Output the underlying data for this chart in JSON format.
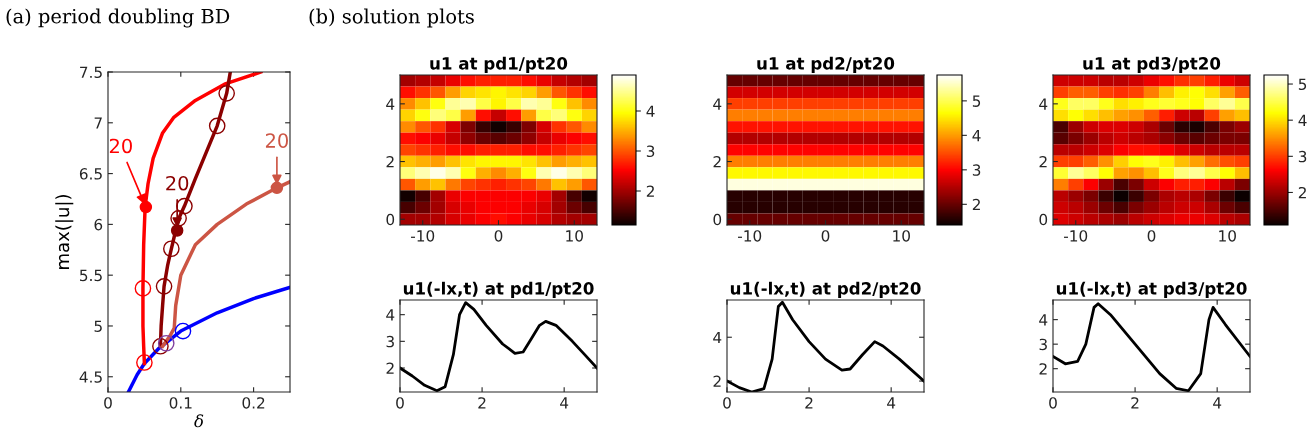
{
  "chart_data": [
    {
      "type": "line",
      "title": "(a) period doubling BD",
      "xlabel": "δ",
      "ylabel": "max(|u|)",
      "xlim": [
        0,
        0.25
      ],
      "xticks": [
        0,
        0.1,
        0.2
      ],
      "ylim": [
        4.35,
        7.5
      ],
      "yticks": [
        4.5,
        5,
        5.5,
        6,
        6.5,
        7,
        7.5
      ],
      "series": [
        {
          "color": "#0000ff",
          "x": [
            0.028,
            0.04,
            0.05,
            0.07,
            0.1,
            0.15,
            0.2,
            0.25
          ],
          "values": [
            4.35,
            4.52,
            4.63,
            4.78,
            4.95,
            5.13,
            5.27,
            5.38
          ]
        },
        {
          "color": "#ff0000",
          "x": [
            0.05,
            0.049,
            0.048,
            0.048,
            0.049,
            0.051,
            0.055,
            0.062,
            0.075,
            0.09,
            0.12,
            0.16,
            0.21
          ],
          "values": [
            4.63,
            4.8,
            5.0,
            5.37,
            5.8,
            6.17,
            6.4,
            6.65,
            6.9,
            7.05,
            7.22,
            7.38,
            7.5
          ]
        },
        {
          "color": "#8b0000",
          "x": [
            0.072,
            0.073,
            0.075,
            0.077,
            0.082,
            0.087,
            0.093,
            0.098,
            0.105,
            0.12,
            0.15,
            0.163,
            0.168
          ],
          "values": [
            4.8,
            5.0,
            5.2,
            5.39,
            5.6,
            5.76,
            5.94,
            6.07,
            6.18,
            6.45,
            6.97,
            7.29,
            7.5
          ]
        },
        {
          "color": "#cc5544",
          "x": [
            0.075,
            0.085,
            0.091,
            0.093,
            0.1,
            0.12,
            0.15,
            0.19,
            0.232,
            0.25
          ],
          "values": [
            4.8,
            4.9,
            4.98,
            5.2,
            5.5,
            5.8,
            6.0,
            6.2,
            6.36,
            6.42
          ]
        },
        {
          "type": "scatter",
          "marker": "circle",
          "color": "#ff0000",
          "x": [
            0.05,
            0.048
          ],
          "values": [
            4.64,
            5.37
          ]
        },
        {
          "type": "scatter",
          "marker": "circle",
          "color": "#8b0000",
          "x": [
            0.072,
            0.077,
            0.087,
            0.097,
            0.105,
            0.15,
            0.163
          ],
          "values": [
            4.8,
            5.39,
            5.76,
            6.06,
            6.18,
            6.97,
            7.29
          ]
        },
        {
          "type": "scatter",
          "marker": "circle",
          "color": "#0000ff",
          "x": [
            0.103
          ],
          "values": [
            4.95
          ]
        },
        {
          "type": "scatter",
          "marker": "circle",
          "color": "#8040a0",
          "x": [
            0.08
          ],
          "values": [
            4.83
          ]
        }
      ],
      "annotations": [
        {
          "text": "20",
          "x": 0.095,
          "y": 5.94
        },
        {
          "text": "20",
          "x": 0.052,
          "y": 6.17
        },
        {
          "text": "20",
          "x": 0.232,
          "y": 6.36
        }
      ]
    },
    {
      "type": "heatmap",
      "title": "u1 at pd1/pt20",
      "annotations": [
        "(b) solution plots"
      ],
      "clim": [
        1.15,
        4.9
      ],
      "cticks": [
        2,
        3,
        4
      ],
      "categories": [
        null,
        "-10",
        null,
        null,
        null,
        null,
        "0",
        null,
        null,
        null,
        null,
        "10",
        null
      ],
      "y_categories": [
        null,
        null,
        "4",
        null,
        null,
        null,
        null,
        "2",
        null,
        null,
        null,
        null,
        "0"
      ],
      "cells": [
        [
          2.0,
          2.1,
          2.2,
          2.4,
          2.6,
          2.7,
          2.7,
          2.7,
          2.6,
          2.4,
          2.2,
          2.1,
          2.0
        ],
        [
          2.6,
          2.8,
          3.0,
          3.4,
          3.7,
          3.8,
          3.9,
          3.8,
          3.7,
          3.4,
          3.0,
          2.8,
          2.6
        ],
        [
          3.3,
          3.6,
          4.0,
          4.5,
          4.6,
          4.2,
          3.9,
          4.2,
          4.6,
          4.5,
          4.0,
          3.6,
          3.3
        ],
        [
          3.7,
          4.0,
          4.4,
          4.2,
          3.4,
          2.6,
          2.2,
          2.6,
          3.4,
          4.2,
          4.4,
          4.0,
          3.7
        ],
        [
          3.3,
          3.0,
          2.8,
          2.3,
          1.8,
          1.4,
          1.2,
          1.4,
          1.8,
          2.3,
          2.8,
          3.0,
          3.3
        ],
        [
          2.6,
          2.5,
          2.4,
          2.2,
          1.9,
          1.7,
          1.6,
          1.7,
          1.9,
          2.2,
          2.4,
          2.5,
          2.6
        ],
        [
          2.9,
          2.8,
          2.7,
          2.6,
          2.6,
          2.7,
          2.7,
          2.7,
          2.6,
          2.6,
          2.7,
          2.8,
          2.9
        ],
        [
          3.6,
          3.5,
          3.4,
          3.6,
          3.8,
          3.9,
          3.9,
          3.9,
          3.8,
          3.6,
          3.4,
          3.5,
          3.6
        ],
        [
          4.4,
          4.6,
          4.8,
          4.6,
          4.0,
          3.5,
          3.3,
          3.5,
          4.0,
          4.6,
          4.8,
          4.6,
          4.4
        ],
        [
          3.0,
          3.4,
          3.6,
          3.2,
          2.9,
          2.8,
          2.7,
          2.8,
          2.9,
          3.2,
          3.6,
          3.4,
          3.0
        ],
        [
          1.2,
          1.5,
          2.0,
          2.4,
          2.5,
          2.5,
          2.5,
          2.5,
          2.5,
          2.4,
          2.0,
          1.5,
          1.2
        ],
        [
          1.5,
          1.7,
          2.0,
          2.3,
          2.4,
          2.5,
          2.5,
          2.5,
          2.4,
          2.3,
          2.0,
          1.7,
          1.5
        ],
        [
          2.0,
          2.0,
          2.1,
          2.3,
          2.4,
          2.5,
          2.6,
          2.5,
          2.4,
          2.3,
          2.1,
          2.0,
          2.0
        ]
      ]
    },
    {
      "type": "heatmap",
      "title": "u1 at pd2/pt20",
      "clim": [
        1.4,
        5.75
      ],
      "cticks": [
        2,
        3,
        4,
        5
      ],
      "categories": [
        null,
        "-10",
        null,
        null,
        null,
        null,
        "0",
        null,
        null,
        null,
        null,
        "10",
        null
      ],
      "y_categories": [
        null,
        null,
        "4",
        null,
        null,
        null,
        null,
        "2",
        null,
        null,
        null,
        null,
        "0"
      ],
      "cells": [
        [
          2.0,
          2.0,
          2.0,
          2.0,
          2.0,
          2.0,
          2.0,
          2.0,
          2.0,
          2.0,
          2.0,
          2.0,
          2.0
        ],
        [
          2.7,
          2.7,
          2.7,
          2.7,
          2.7,
          2.7,
          2.7,
          2.7,
          2.7,
          2.7,
          2.7,
          2.7,
          2.7
        ],
        [
          3.4,
          3.4,
          3.4,
          3.4,
          3.4,
          3.4,
          3.4,
          3.4,
          3.4,
          3.4,
          3.4,
          3.4,
          3.4
        ],
        [
          3.8,
          3.8,
          3.8,
          3.8,
          3.8,
          3.8,
          3.8,
          3.8,
          3.8,
          3.8,
          3.8,
          3.8,
          3.8
        ],
        [
          3.1,
          3.1,
          3.1,
          3.1,
          3.1,
          3.1,
          3.1,
          3.1,
          3.1,
          3.1,
          3.1,
          3.1,
          3.1
        ],
        [
          2.5,
          2.5,
          2.5,
          2.5,
          2.5,
          2.5,
          2.5,
          2.5,
          2.5,
          2.5,
          2.5,
          2.5,
          2.5
        ],
        [
          3.0,
          3.0,
          3.0,
          3.0,
          3.0,
          3.0,
          3.0,
          3.0,
          3.0,
          3.0,
          3.0,
          3.0,
          3.0
        ],
        [
          3.8,
          3.8,
          3.8,
          3.8,
          3.8,
          3.8,
          3.8,
          3.8,
          3.8,
          3.8,
          3.8,
          3.8,
          3.8
        ],
        [
          4.6,
          4.6,
          4.6,
          4.6,
          4.6,
          4.6,
          4.6,
          4.6,
          4.6,
          4.6,
          4.6,
          4.6,
          4.6
        ],
        [
          5.6,
          5.6,
          5.6,
          5.6,
          5.6,
          5.6,
          5.6,
          5.6,
          5.6,
          5.6,
          5.6,
          5.6,
          5.6
        ],
        [
          1.6,
          1.6,
          1.6,
          1.6,
          1.6,
          1.6,
          1.6,
          1.6,
          1.6,
          1.6,
          1.6,
          1.6,
          1.6
        ],
        [
          1.6,
          1.6,
          1.6,
          1.6,
          1.6,
          1.6,
          1.6,
          1.6,
          1.6,
          1.6,
          1.6,
          1.6,
          1.6
        ],
        [
          2.0,
          2.0,
          2.0,
          2.0,
          2.0,
          2.0,
          2.0,
          2.0,
          2.0,
          2.0,
          2.0,
          2.0,
          2.0
        ]
      ]
    },
    {
      "type": "heatmap",
      "title": "u1 at pd3/pt20",
      "clim": [
        1.1,
        5.25
      ],
      "cticks": [
        2,
        3,
        4,
        5
      ],
      "categories": [
        null,
        "-10",
        null,
        null,
        null,
        null,
        "0",
        null,
        null,
        null,
        null,
        "10",
        null
      ],
      "y_categories": [
        null,
        null,
        "4",
        null,
        null,
        null,
        null,
        "2",
        null,
        null,
        null,
        null,
        "0"
      ],
      "cells": [
        [
          2.3,
          2.3,
          2.3,
          2.2,
          2.2,
          2.3,
          2.5,
          2.7,
          2.9,
          3.0,
          2.8,
          2.5,
          2.3
        ],
        [
          3.0,
          3.2,
          3.2,
          3.0,
          2.9,
          3.0,
          3.4,
          3.8,
          4.1,
          4.2,
          4.0,
          3.6,
          3.2
        ],
        [
          4.3,
          4.6,
          4.6,
          4.3,
          4.0,
          4.1,
          4.3,
          4.4,
          4.3,
          4.2,
          4.6,
          4.8,
          4.5
        ],
        [
          4.0,
          4.2,
          4.0,
          3.8,
          3.6,
          3.5,
          3.2,
          2.8,
          2.3,
          2.2,
          3.0,
          3.6,
          3.8
        ],
        [
          1.5,
          2.0,
          2.3,
          2.4,
          2.4,
          2.3,
          2.1,
          1.7,
          1.3,
          1.2,
          1.5,
          1.8,
          2.0
        ],
        [
          1.6,
          1.8,
          2.0,
          2.2,
          2.3,
          2.2,
          2.1,
          1.9,
          1.7,
          1.6,
          1.7,
          1.8,
          1.8
        ],
        [
          2.2,
          2.2,
          2.3,
          2.4,
          2.6,
          2.7,
          2.7,
          2.6,
          2.4,
          2.3,
          2.2,
          2.2,
          2.2
        ],
        [
          3.0,
          3.0,
          3.2,
          3.5,
          3.9,
          4.2,
          4.3,
          4.1,
          3.8,
          3.6,
          3.3,
          3.1,
          3.0
        ],
        [
          4.4,
          4.8,
          4.6,
          4.2,
          3.6,
          3.5,
          3.8,
          4.3,
          4.7,
          4.8,
          4.5,
          4.2,
          3.8
        ],
        [
          3.4,
          3.0,
          2.6,
          2.0,
          1.5,
          1.8,
          2.3,
          2.6,
          2.8,
          2.8,
          2.6,
          2.2,
          1.8
        ],
        [
          2.2,
          2.0,
          1.8,
          1.4,
          1.1,
          1.4,
          1.8,
          2.1,
          2.2,
          2.1,
          1.8,
          1.4,
          1.1
        ],
        [
          2.3,
          2.2,
          2.0,
          1.7,
          1.5,
          1.8,
          2.0,
          2.2,
          2.3,
          2.3,
          2.1,
          1.7,
          1.5
        ],
        [
          2.4,
          2.3,
          2.2,
          2.1,
          2.0,
          2.2,
          2.3,
          2.4,
          2.5,
          2.5,
          2.4,
          2.2,
          2.1
        ]
      ]
    },
    {
      "type": "line",
      "title": "u1(-lx,t) at pd1/pt20",
      "xlim": [
        0,
        4.8
      ],
      "xticks": [
        0,
        2,
        4
      ],
      "ylim": [
        1.1,
        4.55
      ],
      "yticks": [
        2,
        3,
        4
      ],
      "series": [
        {
          "color": "#000000",
          "x": [
            0,
            0.3,
            0.6,
            0.9,
            1.1,
            1.3,
            1.45,
            1.6,
            1.8,
            2.1,
            2.5,
            2.8,
            3.0,
            3.2,
            3.4,
            3.55,
            3.8,
            4.2,
            4.5,
            4.8
          ],
          "values": [
            2.0,
            1.7,
            1.35,
            1.15,
            1.3,
            2.5,
            4.0,
            4.45,
            4.2,
            3.6,
            2.9,
            2.55,
            2.6,
            3.1,
            3.6,
            3.75,
            3.6,
            3.0,
            2.5,
            2.0
          ]
        }
      ]
    },
    {
      "type": "line",
      "title": "u1(-lx,t) at pd2/pt20",
      "xlim": [
        0,
        4.8
      ],
      "xticks": [
        0,
        2,
        4
      ],
      "ylim": [
        1.5,
        5.7
      ],
      "yticks": [
        2,
        4
      ],
      "series": [
        {
          "color": "#000000",
          "x": [
            0,
            0.3,
            0.6,
            0.9,
            1.1,
            1.25,
            1.35,
            1.6,
            2.0,
            2.4,
            2.8,
            3.0,
            3.3,
            3.6,
            3.8,
            4.2,
            4.8
          ],
          "values": [
            2.0,
            1.7,
            1.5,
            1.65,
            3.0,
            5.4,
            5.6,
            4.8,
            3.8,
            3.0,
            2.5,
            2.55,
            3.2,
            3.8,
            3.6,
            3.0,
            2.0
          ]
        }
      ]
    },
    {
      "type": "line",
      "title": "u1(-lx,t) at pd3/pt20",
      "xlim": [
        0,
        4.8
      ],
      "xticks": [
        0,
        2,
        4
      ],
      "ylim": [
        1.05,
        4.8
      ],
      "yticks": [
        2,
        3,
        4
      ],
      "series": [
        {
          "color": "#000000",
          "x": [
            0,
            0.3,
            0.6,
            0.8,
            1.0,
            1.1,
            1.4,
            2.0,
            2.6,
            3.0,
            3.3,
            3.6,
            3.8,
            3.9,
            4.2,
            4.8
          ],
          "values": [
            2.5,
            2.2,
            2.3,
            3.0,
            4.5,
            4.65,
            4.2,
            3.0,
            1.8,
            1.2,
            1.1,
            1.8,
            4.0,
            4.5,
            3.8,
            2.5
          ]
        }
      ]
    }
  ]
}
